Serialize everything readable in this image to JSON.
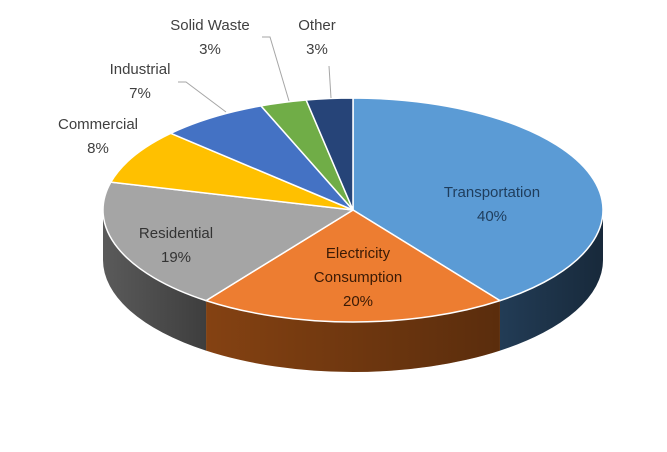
{
  "chart_data": {
    "type": "pie",
    "title": "",
    "slices": [
      {
        "label": "Transportation",
        "label_lines": [
          "Transportation"
        ],
        "value_text": "40%",
        "value": 40,
        "color": "#5b9bd5",
        "side_color": "#243f5a"
      },
      {
        "label": "Electricity Consumption",
        "label_lines": [
          "Electricity",
          "Consumption"
        ],
        "value_text": "20%",
        "value": 20,
        "color": "#ed7d31",
        "side_color": "#8b4513"
      },
      {
        "label": "Residential",
        "label_lines": [
          "Residential"
        ],
        "value_text": "19%",
        "value": 19,
        "color": "#a5a5a5",
        "side_color": "#5f5f5f"
      },
      {
        "label": "Commercial",
        "label_lines": [
          "Commercial"
        ],
        "value_text": "8%",
        "value": 8,
        "color": "#ffc000",
        "side_color": "#8a6800"
      },
      {
        "label": "Industrial",
        "label_lines": [
          "Industrial"
        ],
        "value_text": "7%",
        "value": 7,
        "color": "#4472c4",
        "side_color": "#253e6b"
      },
      {
        "label": "Solid Waste",
        "label_lines": [
          "Solid Waste"
        ],
        "value_text": "3%",
        "value": 3,
        "color": "#70ad47",
        "side_color": "#3c5e26"
      },
      {
        "label": "Other",
        "label_lines": [
          "Other"
        ],
        "value_text": "3%",
        "value": 3,
        "color": "#264478",
        "side_color": "#14253f"
      }
    ],
    "style": "3d-pie",
    "legend": "none"
  }
}
